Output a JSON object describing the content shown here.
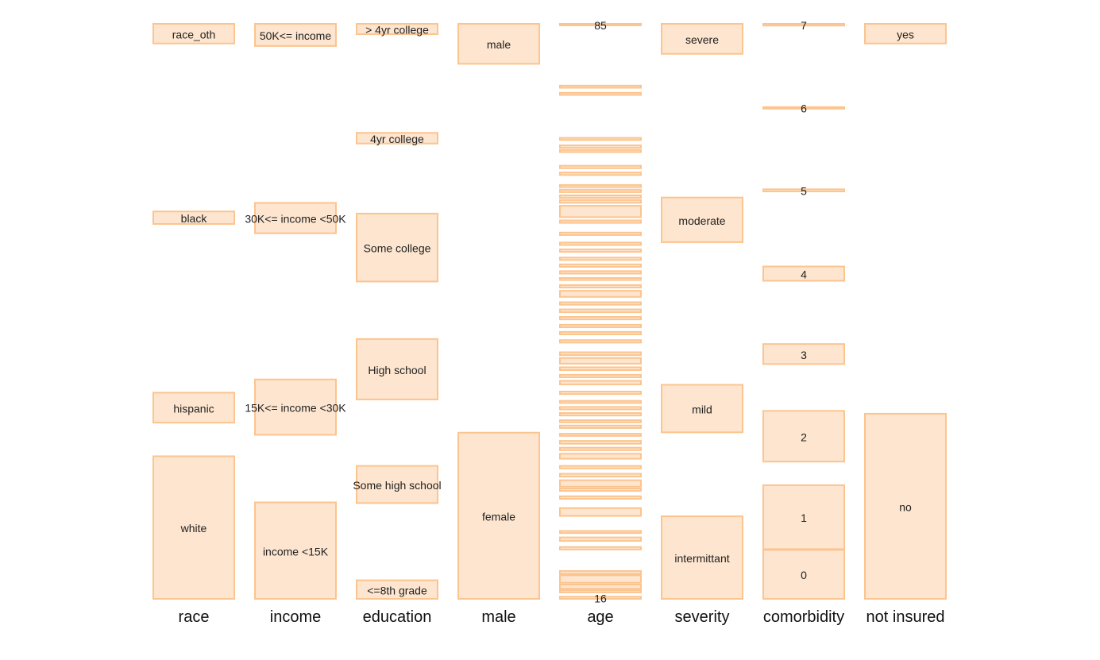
{
  "chart_data": {
    "type": "parallel_sets",
    "style": {
      "fill": "#fde5cf",
      "stroke": "#fcc48e",
      "text": "#222222"
    },
    "dimensions": [
      {
        "name": "race",
        "categories": [
          {
            "label": "white",
            "low": 0,
            "high": 0.399
          },
          {
            "label": "hispanic",
            "low": 0.493,
            "high": 0.577
          },
          {
            "label": "black",
            "low": 1.049,
            "high": 1.084
          },
          {
            "label": "race_oth",
            "low": 1.554,
            "high": 1.609
          }
        ]
      },
      {
        "name": "income",
        "categories": [
          {
            "label": "income <15K",
            "low": 0,
            "high": 0.27
          },
          {
            "label": "15K<= income <30K",
            "low": 0.459,
            "high": 0.614
          },
          {
            "label": "30K<= income <50K",
            "low": 1.023,
            "high": 1.108
          },
          {
            "label": "50K<= income",
            "low": 1.547,
            "high": 1.609
          }
        ]
      },
      {
        "name": "education",
        "categories": [
          {
            "label": "<=8th grade",
            "low": 0,
            "high": 0.052
          },
          {
            "label": "Some high school",
            "low": 0.268,
            "high": 0.372
          },
          {
            "label": "High school",
            "low": 0.558,
            "high": 0.727
          },
          {
            "label": "Some college",
            "low": 0.888,
            "high": 1.078
          },
          {
            "label": "4yr college",
            "low": 1.274,
            "high": 1.304
          },
          {
            "label": "> 4yr college",
            "low": 1.58,
            "high": 1.609
          }
        ]
      },
      {
        "name": "male",
        "categories": [
          {
            "label": "female",
            "low": 0,
            "high": 0.465
          },
          {
            "label": "male",
            "low": 1.497,
            "high": 1.609
          }
        ]
      },
      {
        "name": "age",
        "categories": [
          {
            "label": "16",
            "low": 0,
            "high": 0.006
          },
          {
            "label": "",
            "low": 0.018,
            "high": 0.024
          },
          {
            "label": "",
            "low": 0.028,
            "high": 0.04
          },
          {
            "label": "",
            "low": 0.045,
            "high": 0.066
          },
          {
            "label": "",
            "low": 0.07,
            "high": 0.078
          },
          {
            "label": "",
            "low": 0.138,
            "high": 0.145
          },
          {
            "label": "",
            "low": 0.162,
            "high": 0.172
          },
          {
            "label": "",
            "low": 0.184,
            "high": 0.19
          },
          {
            "label": "",
            "low": 0.232,
            "high": 0.254
          },
          {
            "label": "",
            "low": 0.28,
            "high": 0.287
          },
          {
            "label": "",
            "low": 0.302,
            "high": 0.309
          },
          {
            "label": "",
            "low": 0.314,
            "high": 0.332
          },
          {
            "label": "",
            "low": 0.342,
            "high": 0.35
          },
          {
            "label": "",
            "low": 0.365,
            "high": 0.372
          },
          {
            "label": "",
            "low": 0.392,
            "high": 0.406
          },
          {
            "label": "",
            "low": 0.416,
            "high": 0.423
          },
          {
            "label": "",
            "low": 0.434,
            "high": 0.442
          },
          {
            "label": "",
            "low": 0.456,
            "high": 0.462
          },
          {
            "label": "",
            "low": 0.478,
            "high": 0.485
          },
          {
            "label": "",
            "low": 0.494,
            "high": 0.5
          },
          {
            "label": "",
            "low": 0.513,
            "high": 0.52
          },
          {
            "label": "",
            "low": 0.53,
            "high": 0.537
          },
          {
            "label": "",
            "low": 0.548,
            "high": 0.554
          },
          {
            "label": "",
            "low": 0.573,
            "high": 0.58
          },
          {
            "label": "",
            "low": 0.6,
            "high": 0.61
          },
          {
            "label": "",
            "low": 0.62,
            "high": 0.627
          },
          {
            "label": "",
            "low": 0.64,
            "high": 0.648
          },
          {
            "label": "",
            "low": 0.658,
            "high": 0.674
          },
          {
            "label": "",
            "low": 0.682,
            "high": 0.69
          },
          {
            "label": "",
            "low": 0.717,
            "high": 0.724
          },
          {
            "label": "",
            "low": 0.74,
            "high": 0.747
          },
          {
            "label": "",
            "low": 0.76,
            "high": 0.767
          },
          {
            "label": "",
            "low": 0.782,
            "high": 0.789
          },
          {
            "label": "",
            "low": 0.802,
            "high": 0.81
          },
          {
            "label": "",
            "low": 0.823,
            "high": 0.83
          },
          {
            "label": "",
            "low": 0.845,
            "high": 0.862
          },
          {
            "label": "",
            "low": 0.871,
            "high": 0.878
          },
          {
            "label": "",
            "low": 0.892,
            "high": 0.898
          },
          {
            "label": "",
            "low": 0.91,
            "high": 0.917
          },
          {
            "label": "",
            "low": 0.929,
            "high": 0.936
          },
          {
            "label": "",
            "low": 0.948,
            "high": 0.955
          },
          {
            "label": "",
            "low": 0.971,
            "high": 0.978
          },
          {
            "label": "",
            "low": 0.99,
            "high": 0.997
          },
          {
            "label": "",
            "low": 1.018,
            "high": 1.025
          },
          {
            "label": "",
            "low": 1.052,
            "high": 1.059
          },
          {
            "label": "",
            "low": 1.068,
            "high": 1.1
          },
          {
            "label": "",
            "low": 1.108,
            "high": 1.116
          },
          {
            "label": "",
            "low": 1.122,
            "high": 1.129
          },
          {
            "label": "",
            "low": 1.138,
            "high": 1.145
          },
          {
            "label": "",
            "low": 1.152,
            "high": 1.158
          },
          {
            "label": "",
            "low": 1.186,
            "high": 1.193
          },
          {
            "label": "",
            "low": 1.205,
            "high": 1.212
          },
          {
            "label": "",
            "low": 1.25,
            "high": 1.256
          },
          {
            "label": "",
            "low": 1.262,
            "high": 1.269
          },
          {
            "label": "",
            "low": 1.284,
            "high": 1.29
          },
          {
            "label": "",
            "low": 1.41,
            "high": 1.416
          },
          {
            "label": "",
            "low": 1.43,
            "high": 1.436
          },
          {
            "label": "85",
            "low": 1.605,
            "high": 1.609
          }
        ]
      },
      {
        "name": "severity",
        "categories": [
          {
            "label": "intermittant",
            "low": 0,
            "high": 0.231
          },
          {
            "label": "mild",
            "low": 0.466,
            "high": 0.599
          },
          {
            "label": "moderate",
            "low": 0.998,
            "high": 1.123
          },
          {
            "label": "severe",
            "low": 1.525,
            "high": 1.609
          }
        ]
      },
      {
        "name": "comorbidity",
        "categories": [
          {
            "label": "0",
            "low": 0,
            "high": 0.137
          },
          {
            "label": "1",
            "low": 0.139,
            "high": 0.318
          },
          {
            "label": "2",
            "low": 0.384,
            "high": 0.526
          },
          {
            "label": "3",
            "low": 0.657,
            "high": 0.713
          },
          {
            "label": "4",
            "low": 0.89,
            "high": 0.93
          },
          {
            "label": "5",
            "low": 1.14,
            "high": 1.146
          },
          {
            "label": "6",
            "low": 1.372,
            "high": 1.376
          },
          {
            "label": "7",
            "low": 1.604,
            "high": 1.609
          }
        ]
      },
      {
        "name": "not insured",
        "categories": [
          {
            "label": "no",
            "low": 0,
            "high": 0.518
          },
          {
            "label": "yes",
            "low": 1.554,
            "high": 1.609
          }
        ]
      }
    ]
  }
}
